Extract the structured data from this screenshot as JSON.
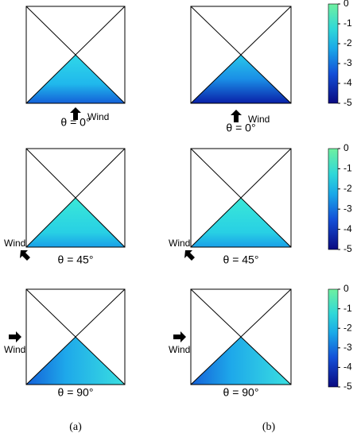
{
  "rows": [
    {
      "label_a": "θ = 0°",
      "label_b": "θ = 0°",
      "wind_a": "Wind",
      "wind_b": "Wind",
      "colorbar": {
        "lim": [
          -5,
          0
        ],
        "ticks": [
          0,
          -1,
          -2,
          -3,
          -4,
          -5
        ]
      }
    },
    {
      "label_a": "θ = 45°",
      "label_b": "θ = 45°",
      "wind_a": "Wind",
      "wind_b": "Wind",
      "colorbar": {
        "lim": [
          -5,
          0
        ],
        "ticks": [
          0,
          -1,
          -2,
          -3,
          -4,
          -5
        ]
      }
    },
    {
      "label_a": "θ = 90°",
      "label_b": "θ = 90°",
      "wind_a": "Wind",
      "wind_b": "Wind",
      "colorbar": {
        "lim": [
          -5,
          0
        ],
        "ticks": [
          0,
          -1,
          -2,
          -3,
          -4,
          -5
        ]
      }
    }
  ],
  "captions": [
    "(a)",
    "(b)"
  ]
}
